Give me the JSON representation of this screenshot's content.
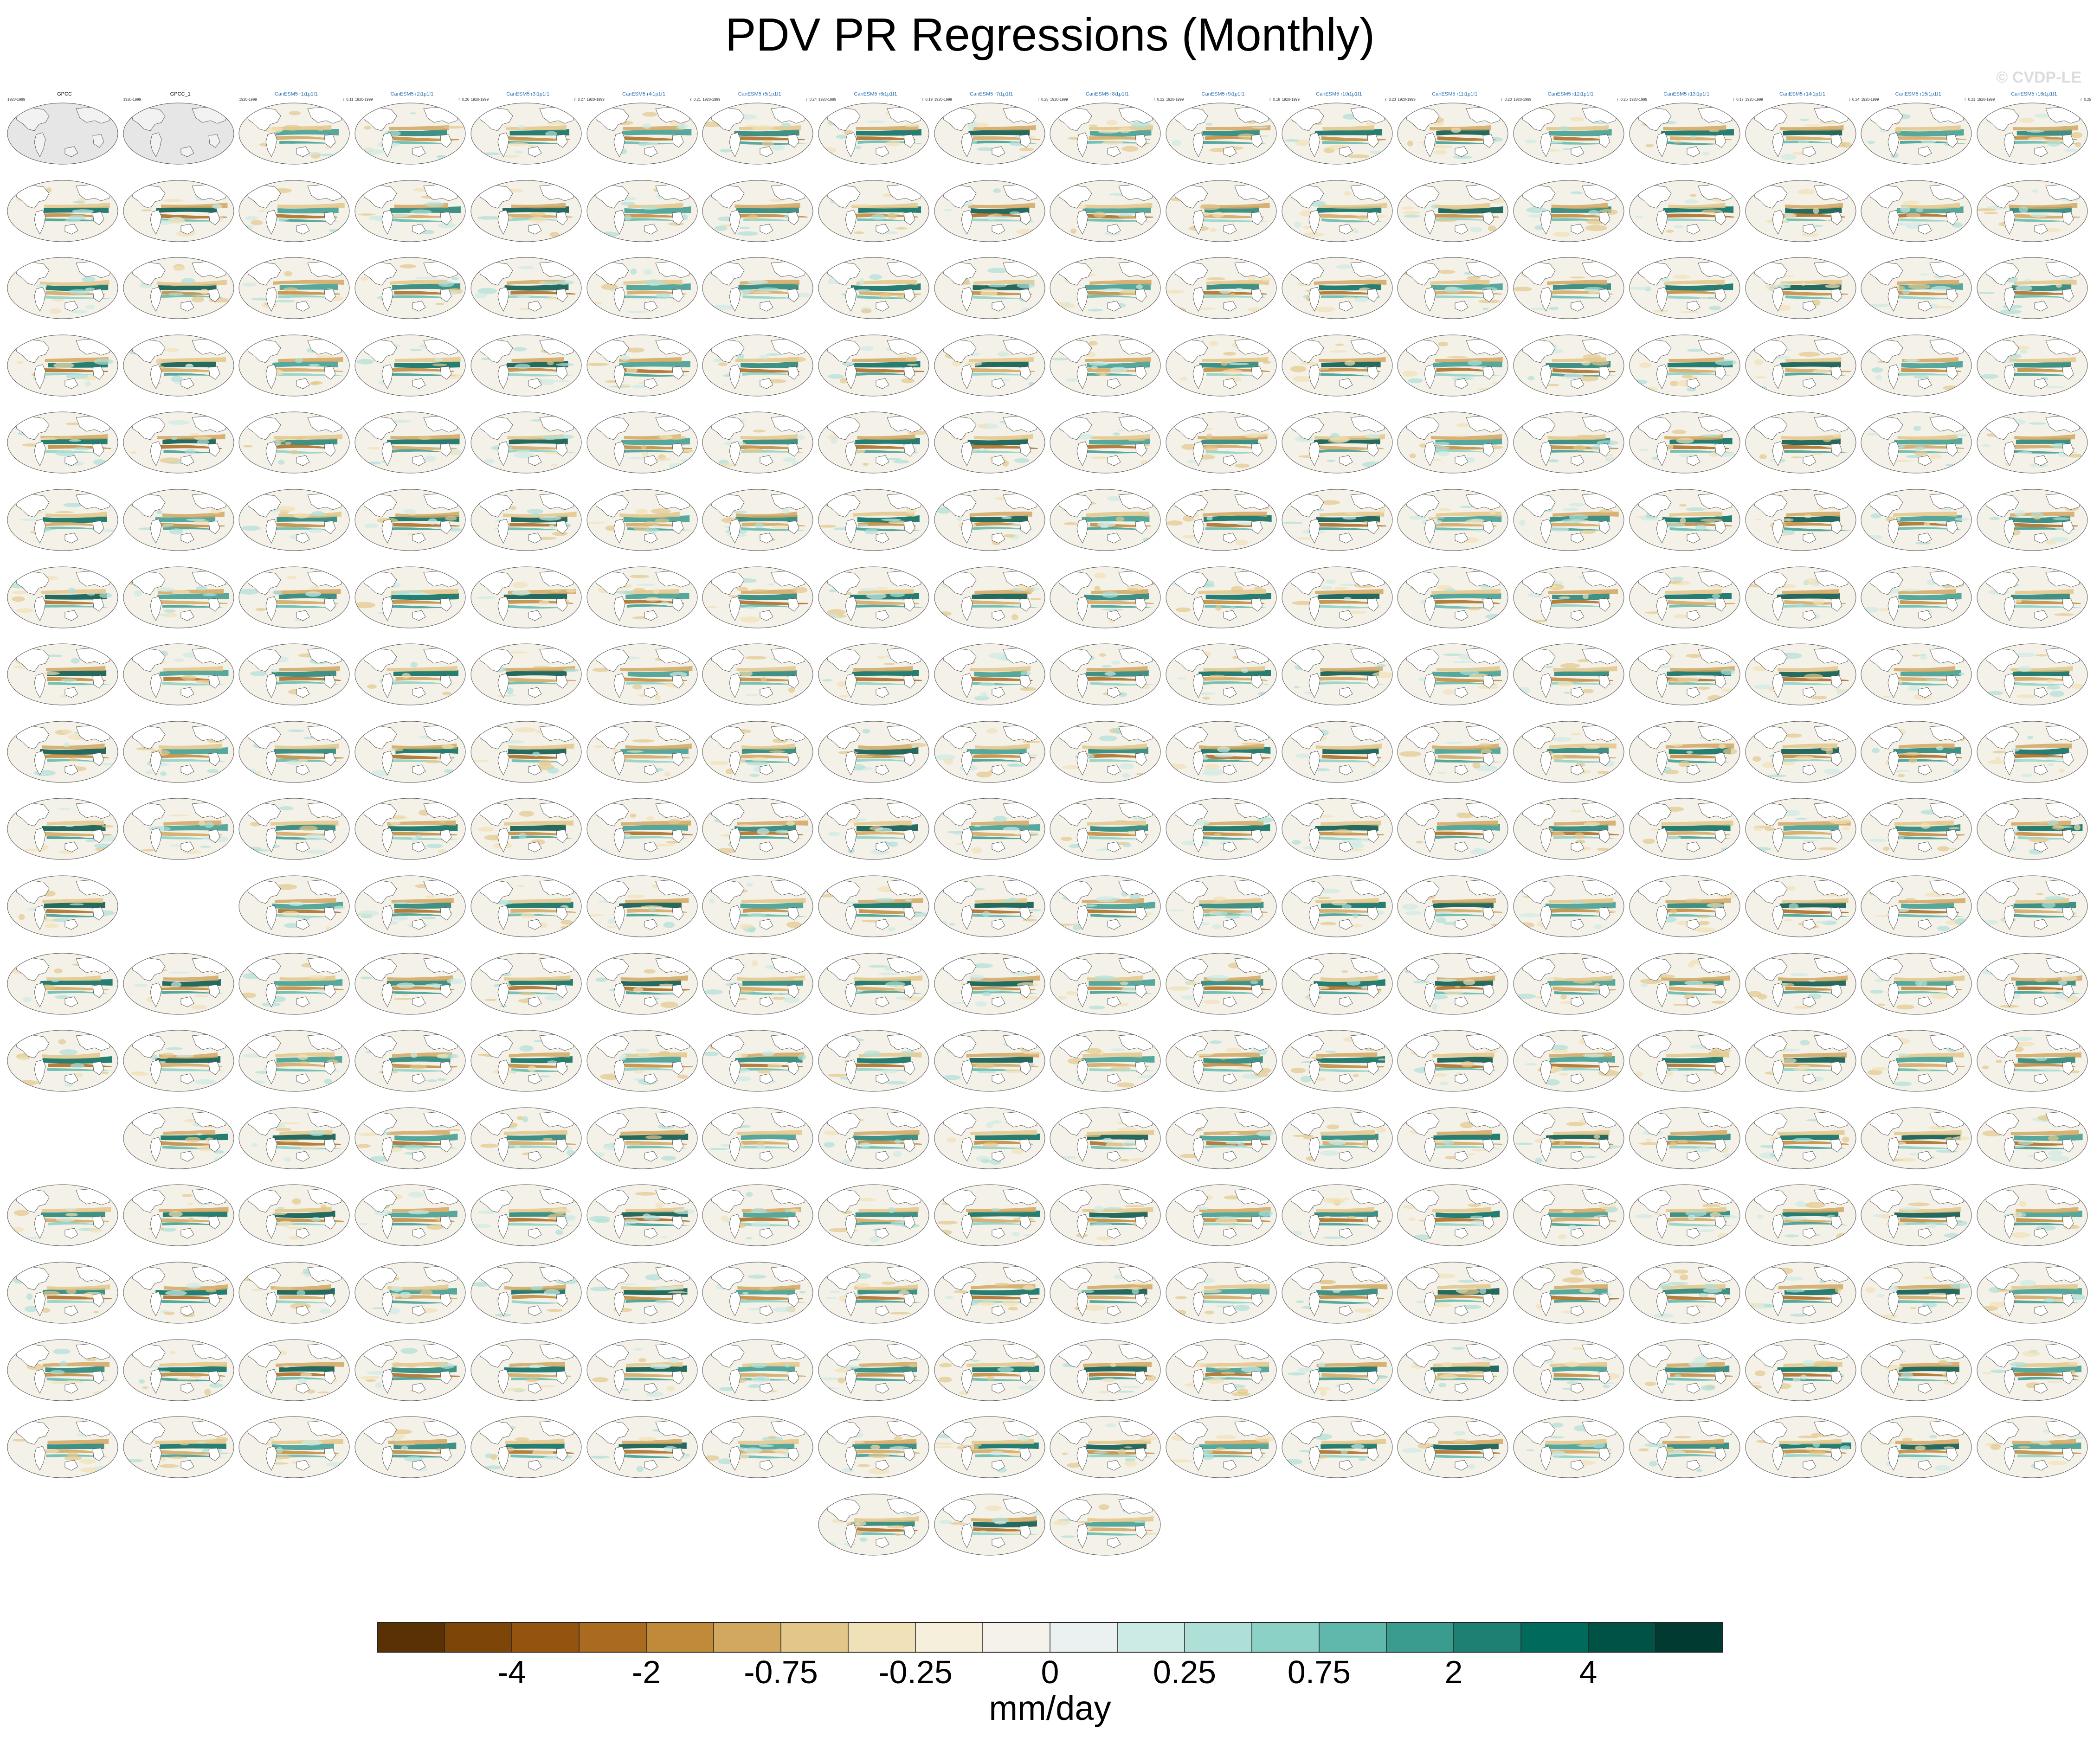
{
  "title": "PDV PR Regressions (Monthly)",
  "watermark": "© CVDP-LE",
  "colors": {
    "land": "#ffffff",
    "ocean_neutral": "#f4f1e8",
    "obs_fill": "#e6e6e6",
    "coast": "#444444",
    "title_cesm2": "#2b6fb0",
    "title_cesm1": "#b5b5b5",
    "title_cmip": "#b0b0b0",
    "title_giss": "#c2502e",
    "title_ipsl": "#7b6fd6",
    "title_miroc": "#e4a97e"
  },
  "chart_data": {
    "type": "heatmap",
    "title": "PDV PR Regressions (Monthly)",
    "colorbar": {
      "units": "mm/day",
      "colors": [
        "#5a3005",
        "#7d4608",
        "#945410",
        "#aa6a1f",
        "#c08a39",
        "#d2a760",
        "#e3c78a",
        "#f1e1b8",
        "#f6efdc",
        "#f5f2ec",
        "#ebf1f0",
        "#cdebe5",
        "#aee0d8",
        "#8cd1c5",
        "#5fb8ab",
        "#3a9b8f",
        "#1e8073",
        "#006a5c",
        "#005246",
        "#003a30"
      ],
      "tick_labels": [
        "-4",
        "-2",
        "-0.75",
        "-0.25",
        "0",
        "0.25",
        "0.75",
        "2",
        "4"
      ]
    },
    "panels": [
      {
        "title": "GPCC",
        "color": "obs",
        "years": "1920-1999",
        "r": ""
      },
      {
        "title": "GPCC_1",
        "color": "obs",
        "years": "1920-1999",
        "r": ""
      },
      {
        "title": "CanESM5 r1i1p1f1",
        "color": "cesm2",
        "years": "1920-1999",
        "r": "r=0.11"
      },
      {
        "title": "CanESM5 r2i1p1f1",
        "color": "cesm2",
        "years": "1920-1999",
        "r": "r=0.26"
      },
      {
        "title": "CanESM5 r3i1p1f1",
        "color": "cesm2",
        "years": "1920-1999",
        "r": "r=0.27"
      },
      {
        "title": "CanESM5 r4i1p1f1",
        "color": "cesm2",
        "years": "1920-1999",
        "r": "r=0.21"
      },
      {
        "title": "CanESM5 r5i1p1f1",
        "color": "cesm2",
        "years": "1920-1999",
        "r": "r=0.24"
      },
      {
        "title": "CanESM5 r6i1p1f1",
        "color": "cesm2",
        "years": "1920-1999",
        "r": "r=0.19"
      },
      {
        "title": "CanESM5 r7i1p1f1",
        "color": "cesm2",
        "years": "1920-1999",
        "r": "r=0.25"
      },
      {
        "title": "CanESM5 r8i1p1f1",
        "color": "cesm2",
        "years": "1920-1999",
        "r": "r=0.22"
      },
      {
        "title": "CanESM5 r9i1p1f1",
        "color": "cesm2",
        "years": "1920-1999",
        "r": "r=0.18"
      },
      {
        "title": "CanESM5 r10i1p1f1",
        "color": "cesm2",
        "years": "1920-1999",
        "r": "r=0.23"
      },
      {
        "title": "CanESM5 r11i1p1f1",
        "color": "cesm2",
        "years": "1920-1999",
        "r": "r=0.20"
      },
      {
        "title": "CanESM5 r12i1p1f1",
        "color": "cesm2",
        "years": "1920-1999",
        "r": "r=0.26"
      },
      {
        "title": "CanESM5 r13i1p1f1",
        "color": "cesm2",
        "years": "1920-1999",
        "r": "r=0.17"
      },
      {
        "title": "CanESM5 r14i1p1f1",
        "color": "cesm2",
        "years": "1920-1999",
        "r": "r=0.24"
      },
      {
        "title": "CanESM5 r15i1p1f1",
        "color": "cesm2",
        "years": "1920-1999",
        "r": "r=0.21"
      },
      {
        "title": "CanESM5 r16i1p1f1",
        "color": "cesm2",
        "years": "1920-1999",
        "r": "r=0.25"
      }
    ],
    "panel_rows": [
      {
        "count": 18,
        "title_color": "cesm2",
        "obs_first": 2
      },
      {
        "count": 18,
        "title_color": "cesm2"
      },
      {
        "count": 18,
        "title_color": "cesm2"
      },
      {
        "count": 18,
        "title_color": "cesm2",
        "switch_at": 12,
        "title_color_2": "cesm1"
      },
      {
        "count": 18,
        "title_color": "cesm1"
      },
      {
        "count": 18,
        "title_color": "cesm1"
      },
      {
        "count": 18,
        "title_color": "cesm1"
      },
      {
        "count": 18,
        "title_color": "cesm1"
      },
      {
        "count": 18,
        "title_color": "cesm1"
      },
      {
        "count": 18,
        "title_color": "cesm1",
        "switch_at": 4,
        "title_color_2": "cmip"
      },
      {
        "count": 17,
        "title_color": "cmip",
        "skip": [
          1
        ],
        "switch_at": 17,
        "title_color_2": "giss"
      },
      {
        "count": 18,
        "title_color": "giss"
      },
      {
        "count": 18,
        "title_color": "giss"
      },
      {
        "count": 17,
        "title_color": "giss",
        "skip": [
          0
        ],
        "switch_at": 8,
        "title_color_2": "ipsl"
      },
      {
        "count": 18,
        "title_color": "ipsl"
      },
      {
        "count": 18,
        "title_color": "ipsl",
        "switch_at": 7,
        "title_color_2": "miroc"
      },
      {
        "count": 18,
        "title_color": "miroc"
      },
      {
        "count": 18,
        "title_color": "miroc"
      },
      {
        "count": 3,
        "title_color": "miroc",
        "centered": true
      }
    ]
  }
}
